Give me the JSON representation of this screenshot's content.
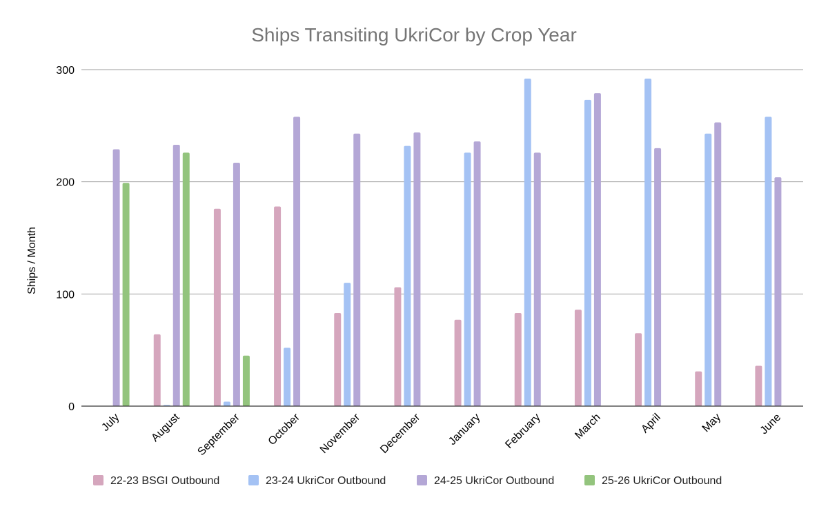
{
  "chart_data": {
    "type": "bar",
    "title": "Ships Transiting UkriCor by Crop Year",
    "xlabel": "",
    "ylabel": "Ships / Month",
    "ylim": [
      0,
      300
    ],
    "yticks": [
      0,
      100,
      200,
      300
    ],
    "grid": true,
    "legend_position": "bottom",
    "categories": [
      "July",
      "August",
      "September",
      "October",
      "November",
      "December",
      "January",
      "February",
      "March",
      "April",
      "May",
      "June"
    ],
    "series": [
      {
        "name": "22-23 BSGI Outbound",
        "color": "#d5a6bd",
        "values": [
          null,
          64,
          176,
          178,
          83,
          106,
          77,
          83,
          86,
          65,
          31,
          36
        ]
      },
      {
        "name": "23-24 UkriCor Outbound",
        "color": "#a4c2f4",
        "values": [
          null,
          1,
          4,
          52,
          110,
          232,
          226,
          292,
          273,
          292,
          243,
          258
        ]
      },
      {
        "name": "24-25 UkriCor Outbound",
        "color": "#b4a7d6",
        "values": [
          229,
          233,
          217,
          258,
          243,
          244,
          236,
          226,
          279,
          230,
          253,
          204
        ]
      },
      {
        "name": "25-26 UkriCor Outbound",
        "color": "#93c47d",
        "values": [
          199,
          226,
          45,
          null,
          null,
          null,
          null,
          null,
          null,
          null,
          null,
          null
        ]
      }
    ]
  }
}
